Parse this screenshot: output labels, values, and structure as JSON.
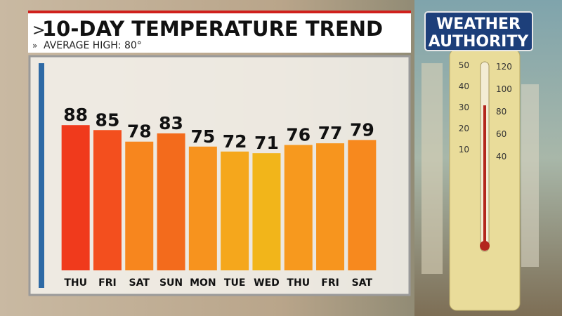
{
  "chart_data": {
    "type": "bar",
    "title": "10-DAY TEMPERATURE TREND",
    "subtitle": "AVERAGE HIGH: 80°",
    "categories": [
      "THU",
      "FRI",
      "SAT",
      "SUN",
      "MON",
      "TUE",
      "WED",
      "THU",
      "FRI",
      "SAT"
    ],
    "values": [
      88,
      85,
      78,
      83,
      75,
      72,
      71,
      76,
      77,
      79
    ],
    "colors": [
      "#f03a1c",
      "#f34f1e",
      "#f7861e",
      "#f36b1c",
      "#f7931e",
      "#f5a71c",
      "#f2b51a",
      "#f7991e",
      "#f7951e",
      "#f7891e"
    ],
    "ylim": [
      0,
      100
    ]
  },
  "logo": {
    "line1": "WEATHER",
    "line2": "AUTHORITY"
  },
  "thermometer": {
    "celsius": [
      50,
      40,
      30,
      20,
      10
    ],
    "fahrenheit": [
      120,
      100,
      80,
      60,
      40
    ]
  }
}
